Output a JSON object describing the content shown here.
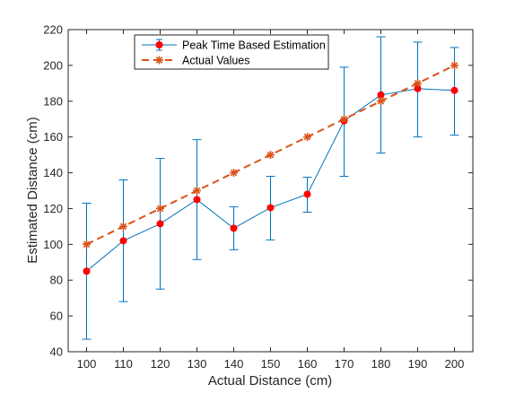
{
  "chart_data": {
    "type": "line",
    "xlabel": "Actual Distance (cm)",
    "ylabel": "Estimated Distance (cm)",
    "x": [
      100,
      110,
      120,
      130,
      140,
      150,
      160,
      170,
      180,
      190,
      200
    ],
    "xlim": [
      95,
      205
    ],
    "ylim": [
      40,
      220
    ],
    "xticks": [
      100,
      110,
      120,
      130,
      140,
      150,
      160,
      170,
      180,
      190,
      200
    ],
    "yticks": [
      40,
      60,
      80,
      100,
      120,
      140,
      160,
      180,
      200,
      220
    ],
    "grid": false,
    "legend_position": "top-center",
    "series": [
      {
        "name": "Peak Time Based Estimation",
        "color": "#0072BD",
        "marker_color": "#FF0000",
        "style": "solid-with-errorbars",
        "values": [
          85,
          102,
          111.5,
          125,
          109,
          120.5,
          128,
          169,
          183.5,
          187,
          186
        ],
        "err_low": [
          47,
          68,
          75,
          91.5,
          97,
          102.5,
          118,
          138,
          151,
          160,
          161
        ],
        "err_high": [
          123,
          136,
          148,
          158.5,
          121,
          138,
          137.5,
          199,
          216,
          213,
          210
        ]
      },
      {
        "name": "Actual Values",
        "color": "#D95319",
        "style": "dashed-star",
        "values": [
          100,
          110,
          120,
          130,
          140,
          150,
          160,
          170,
          180,
          190,
          200
        ]
      }
    ]
  }
}
